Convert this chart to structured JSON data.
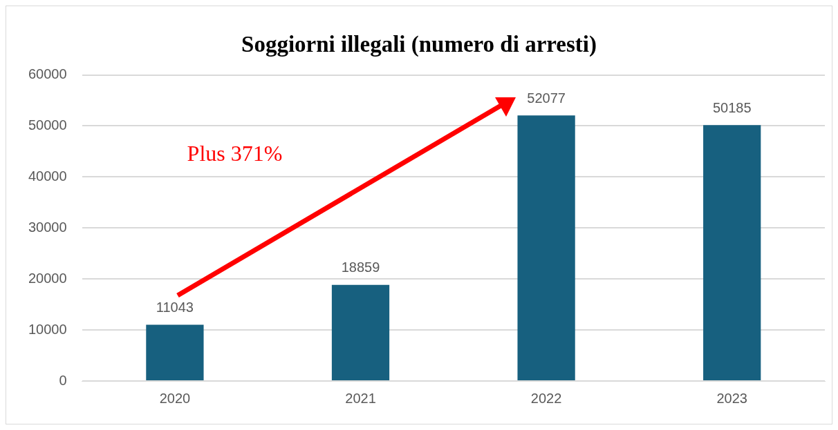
{
  "chart_data": {
    "type": "bar",
    "title": "Soggiorni illegali (numero di arresti)",
    "categories": [
      "2020",
      "2021",
      "2022",
      "2023"
    ],
    "values": [
      11043,
      18859,
      52077,
      50185
    ],
    "color": "#17607f",
    "ylim": [
      0,
      60000
    ],
    "yticks": [
      0,
      10000,
      20000,
      30000,
      40000,
      50000,
      60000
    ],
    "grid": "y",
    "legend": false,
    "data_labels": true,
    "annotations": [
      "Plus 371%"
    ]
  }
}
